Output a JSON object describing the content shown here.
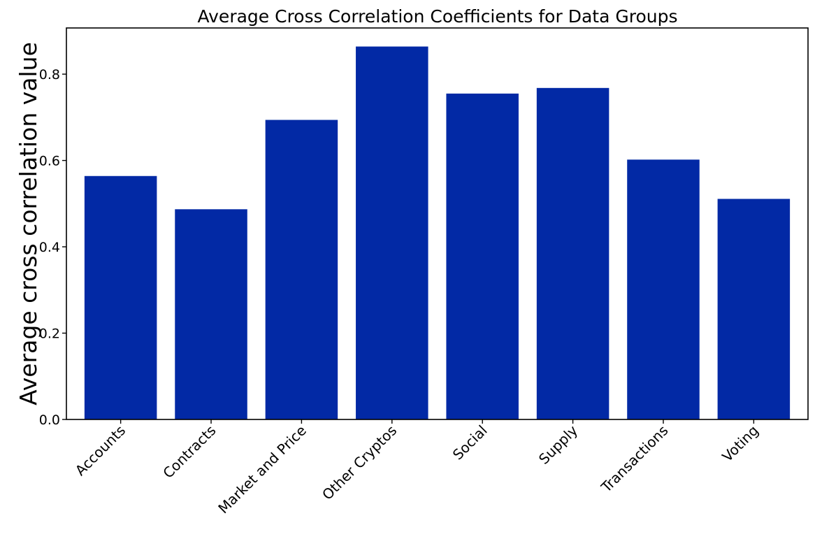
{
  "chart_data": {
    "type": "bar",
    "title": "Average Cross Correlation Coefficients for Data Groups",
    "xlabel": "",
    "ylabel": "Average cross correlation value",
    "categories": [
      "Accounts",
      "Contracts",
      "Market and Price",
      "Other Cryptos",
      "Social",
      "Supply",
      "Transactions",
      "Voting"
    ],
    "values": [
      0.564,
      0.487,
      0.694,
      0.864,
      0.755,
      0.768,
      0.602,
      0.511
    ],
    "ylim": [
      0,
      0.907
    ],
    "yticks": [
      "0.0",
      "0.2",
      "0.4",
      "0.6",
      "0.8"
    ],
    "grid": false,
    "bar_color": "#0229a5"
  }
}
